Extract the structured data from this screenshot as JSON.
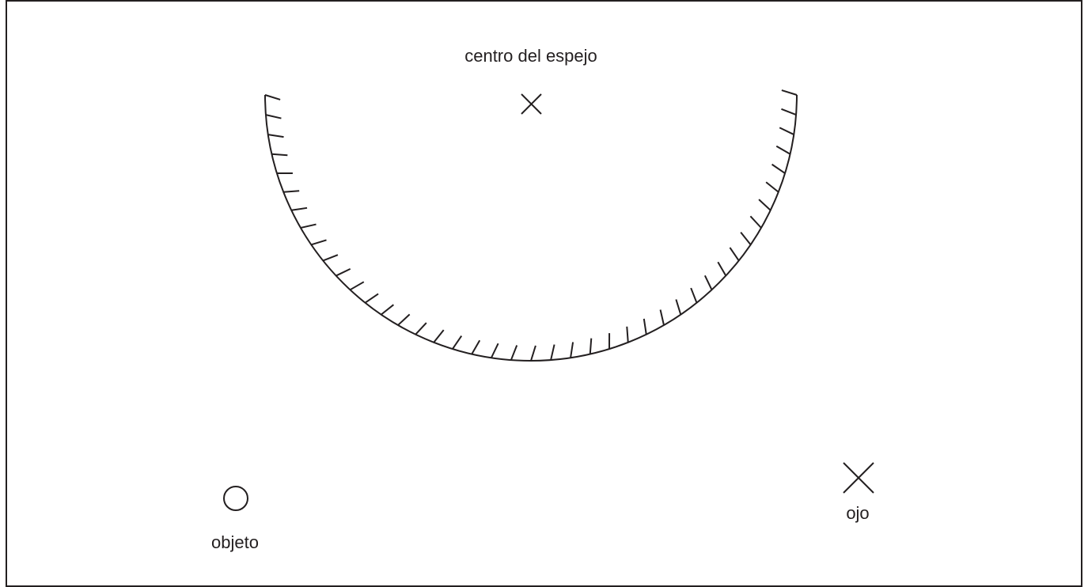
{
  "labels": {
    "center": "centro del espejo",
    "object": "objeto",
    "eye": "ojo"
  }
}
